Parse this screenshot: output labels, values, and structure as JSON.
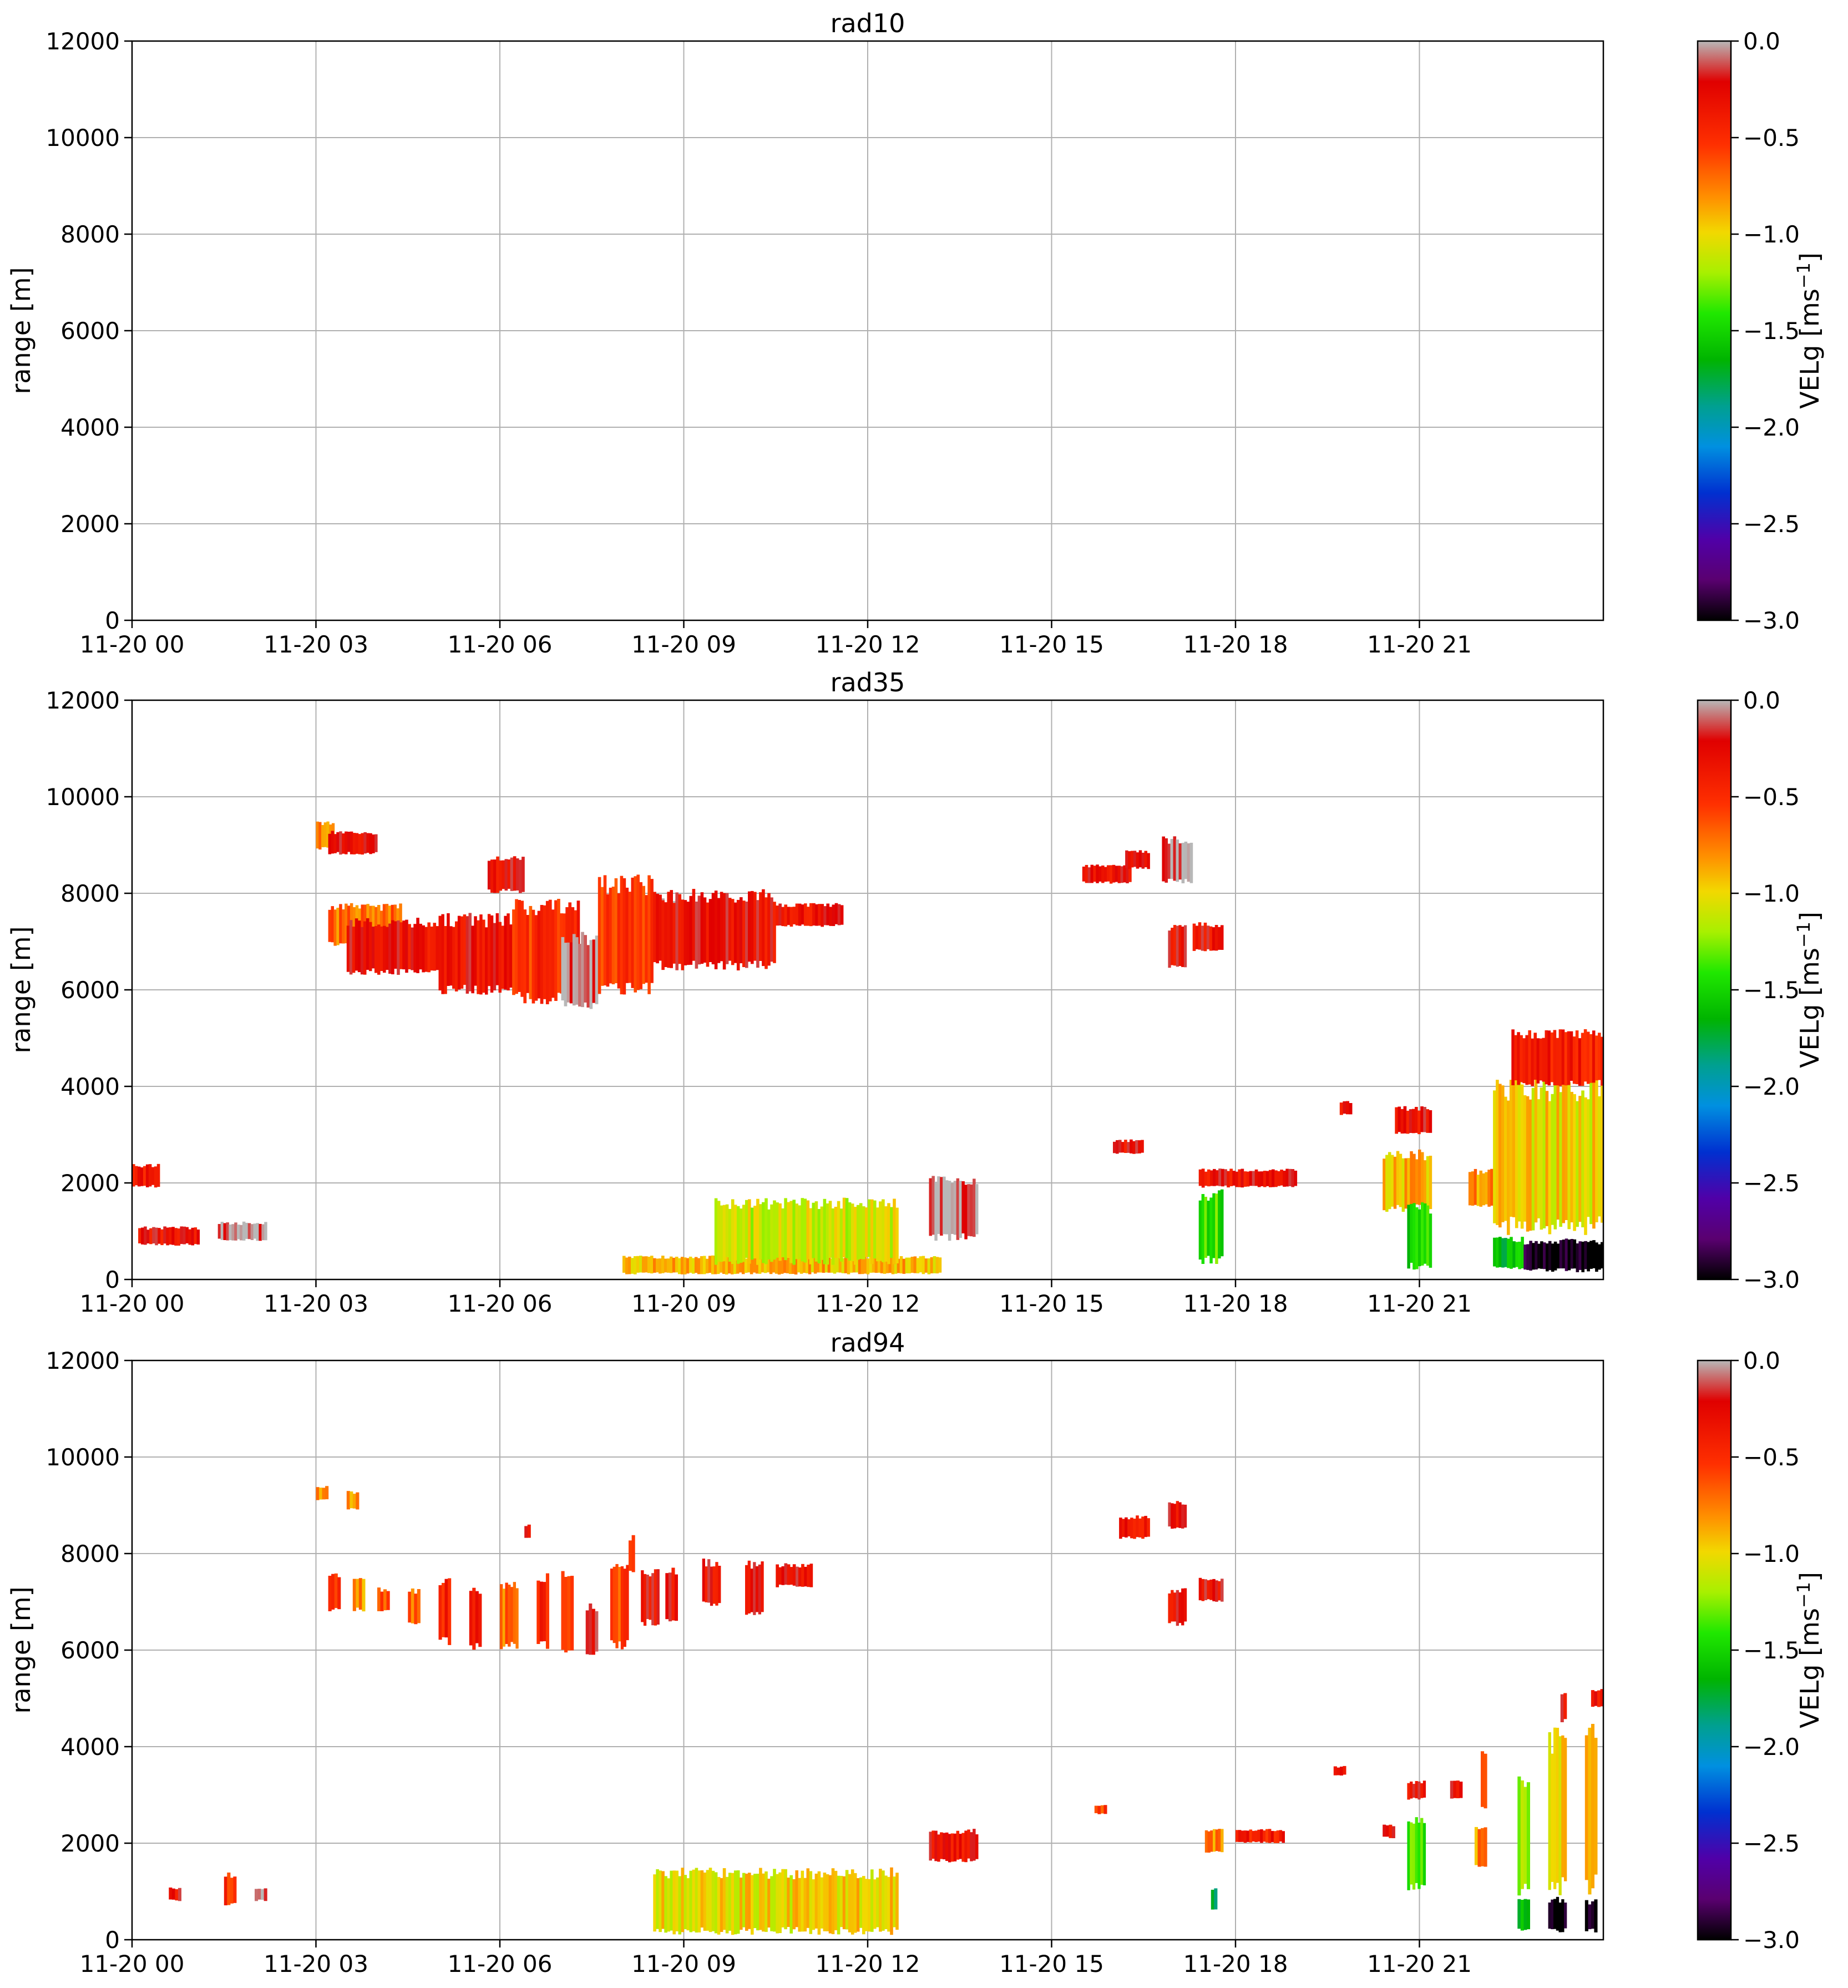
{
  "chart_data": [
    {
      "type": "heatmap",
      "title": "rad10",
      "ylabel": "range [m]",
      "xlabel": "",
      "ylim": [
        0,
        12000
      ],
      "yticks": [
        0,
        2000,
        4000,
        6000,
        8000,
        10000,
        12000
      ],
      "xlim_hours": [
        0,
        24
      ],
      "xticks_hours": [
        0,
        3,
        6,
        9,
        12,
        15,
        18,
        21
      ],
      "xtick_labels": [
        "11-20 00",
        "11-20 03",
        "11-20 06",
        "11-20 09",
        "11-20 12",
        "11-20 15",
        "11-20 18",
        "11-20 21"
      ],
      "grid": true,
      "colorbar": {
        "label": "VELg [ms$^{-1}$]",
        "label_main": "VELg [ms",
        "label_sup": "−1",
        "label_close": "]",
        "range": [
          -3.0,
          0.0
        ],
        "ticks": [
          "0.0",
          "−0.5",
          "−1.0",
          "−1.5",
          "−2.0",
          "−2.5",
          "−3.0"
        ]
      },
      "echo_regions": []
    },
    {
      "type": "heatmap",
      "title": "rad35",
      "ylabel": "range [m]",
      "xlabel": "",
      "ylim": [
        0,
        12000
      ],
      "yticks": [
        0,
        2000,
        4000,
        6000,
        8000,
        10000,
        12000
      ],
      "xlim_hours": [
        0,
        24
      ],
      "xticks_hours": [
        0,
        3,
        6,
        9,
        12,
        15,
        18,
        21
      ],
      "xtick_labels": [
        "11-20 00",
        "11-20 03",
        "11-20 06",
        "11-20 09",
        "11-20 12",
        "11-20 15",
        "11-20 18",
        "11-20 21"
      ],
      "grid": true,
      "colorbar": {
        "label": "VELg [ms$^{-1}$]",
        "label_main": "VELg [ms",
        "label_sup": "−1",
        "label_close": "]",
        "range": [
          -3.0,
          0.0
        ],
        "ticks": [
          "0.0",
          "−0.5",
          "−1.0",
          "−1.5",
          "−2.0",
          "−2.5",
          "−3.0"
        ]
      },
      "echo_regions": [
        {
          "t0": 0.0,
          "t1": 0.45,
          "r0": 1900,
          "r1": 2400,
          "vel": -0.4
        },
        {
          "t0": 0.1,
          "t1": 1.1,
          "r0": 700,
          "r1": 1100,
          "vel": -0.3
        },
        {
          "t0": 1.4,
          "t1": 2.2,
          "r0": 800,
          "r1": 1200,
          "vel": -0.05
        },
        {
          "t0": 3.0,
          "t1": 3.3,
          "r0": 8900,
          "r1": 9500,
          "vel": -0.8
        },
        {
          "t0": 3.2,
          "t1": 4.0,
          "r0": 8800,
          "r1": 9300,
          "vel": -0.3
        },
        {
          "t0": 3.2,
          "t1": 4.4,
          "r0": 6900,
          "r1": 7800,
          "vel": -0.7
        },
        {
          "t0": 3.5,
          "t1": 5.0,
          "r0": 6300,
          "r1": 7500,
          "vel": -0.3
        },
        {
          "t0": 5.0,
          "t1": 6.2,
          "r0": 5900,
          "r1": 7600,
          "vel": -0.3
        },
        {
          "t0": 5.8,
          "t1": 6.4,
          "r0": 8000,
          "r1": 8800,
          "vel": -0.3
        },
        {
          "t0": 6.2,
          "t1": 7.3,
          "r0": 5700,
          "r1": 7900,
          "vel": -0.5
        },
        {
          "t0": 7.0,
          "t1": 7.6,
          "r0": 5600,
          "r1": 7200,
          "vel": -0.05
        },
        {
          "t0": 7.6,
          "t1": 8.5,
          "r0": 5900,
          "r1": 8400,
          "vel": -0.5
        },
        {
          "t0": 8.5,
          "t1": 9.0,
          "r0": 7200,
          "r1": 7900,
          "vel": -0.05
        },
        {
          "t0": 8.5,
          "t1": 10.5,
          "r0": 6400,
          "r1": 8100,
          "vel": -0.3
        },
        {
          "t0": 10.5,
          "t1": 11.6,
          "r0": 7300,
          "r1": 7800,
          "vel": -0.3
        },
        {
          "t0": 8.0,
          "t1": 13.2,
          "r0": 100,
          "r1": 500,
          "vel": -0.9
        },
        {
          "t0": 9.5,
          "t1": 12.5,
          "r0": 300,
          "r1": 1700,
          "vel": -1.1
        },
        {
          "t0": 13.0,
          "t1": 13.8,
          "r0": 800,
          "r1": 2200,
          "vel": -0.05
        },
        {
          "t0": 15.5,
          "t1": 16.3,
          "r0": 8200,
          "r1": 8600,
          "vel": -0.3
        },
        {
          "t0": 16.2,
          "t1": 16.6,
          "r0": 8500,
          "r1": 8900,
          "vel": -0.3
        },
        {
          "t0": 16.8,
          "t1": 17.3,
          "r0": 8200,
          "r1": 9200,
          "vel": -0.05
        },
        {
          "t0": 16.9,
          "t1": 17.2,
          "r0": 6400,
          "r1": 7400,
          "vel": -0.3
        },
        {
          "t0": 17.3,
          "t1": 17.8,
          "r0": 6800,
          "r1": 7400,
          "vel": -0.3
        },
        {
          "t0": 16.0,
          "t1": 16.5,
          "r0": 2600,
          "r1": 2900,
          "vel": -0.3
        },
        {
          "t0": 17.4,
          "t1": 19.0,
          "r0": 1900,
          "r1": 2300,
          "vel": -0.3
        },
        {
          "t0": 17.4,
          "t1": 17.8,
          "r0": 300,
          "r1": 1900,
          "vel": -1.4
        },
        {
          "t0": 19.7,
          "t1": 19.9,
          "r0": 3400,
          "r1": 3700,
          "vel": -0.3
        },
        {
          "t0": 20.4,
          "t1": 21.2,
          "r0": 1400,
          "r1": 2700,
          "vel": -0.9
        },
        {
          "t0": 20.6,
          "t1": 21.2,
          "r0": 3000,
          "r1": 3600,
          "vel": -0.3
        },
        {
          "t0": 20.8,
          "t1": 21.2,
          "r0": 200,
          "r1": 1600,
          "vel": -1.5
        },
        {
          "t0": 21.8,
          "t1": 22.2,
          "r0": 1500,
          "r1": 2300,
          "vel": -0.8
        },
        {
          "t0": 22.2,
          "t1": 24.0,
          "r0": 900,
          "r1": 4300,
          "vel": -1.0
        },
        {
          "t0": 22.5,
          "t1": 24.0,
          "r0": 4000,
          "r1": 5200,
          "vel": -0.4
        },
        {
          "t0": 22.2,
          "t1": 22.7,
          "r0": 200,
          "r1": 900,
          "vel": -1.6
        },
        {
          "t0": 22.7,
          "t1": 24.0,
          "r0": 150,
          "r1": 850,
          "vel": -3.0
        }
      ]
    },
    {
      "type": "heatmap",
      "title": "rad94",
      "ylabel": "range [m]",
      "xlabel": "",
      "ylim": [
        0,
        12000
      ],
      "yticks": [
        0,
        2000,
        4000,
        6000,
        8000,
        10000,
        12000
      ],
      "xlim_hours": [
        0,
        24
      ],
      "xticks_hours": [
        0,
        3,
        6,
        9,
        12,
        15,
        18,
        21
      ],
      "xtick_labels": [
        "11-20 00",
        "11-20 03",
        "11-20 06",
        "11-20 09",
        "11-20 12",
        "11-20 15",
        "11-20 18",
        "11-20 21"
      ],
      "grid": true,
      "colorbar": {
        "label": "VELg [ms$^{-1}$]",
        "label_main": "VELg [ms",
        "label_sup": "−1",
        "label_close": "]",
        "range": [
          -3.0,
          0.0
        ],
        "ticks": [
          "0.0",
          "−0.5",
          "−1.0",
          "−1.5",
          "−2.0",
          "−2.5",
          "−3.0"
        ]
      },
      "echo_regions": [
        {
          "t0": 0.6,
          "t1": 0.8,
          "r0": 800,
          "r1": 1100,
          "vel": -0.3
        },
        {
          "t0": 1.5,
          "t1": 1.7,
          "r0": 700,
          "r1": 1400,
          "vel": -0.5
        },
        {
          "t0": 2.0,
          "t1": 2.2,
          "r0": 800,
          "r1": 1100,
          "vel": -0.05
        },
        {
          "t0": 3.0,
          "t1": 3.2,
          "r0": 9100,
          "r1": 9400,
          "vel": -0.8
        },
        {
          "t0": 3.5,
          "t1": 3.7,
          "r0": 8900,
          "r1": 9300,
          "vel": -0.8
        },
        {
          "t0": 3.2,
          "t1": 3.4,
          "r0": 6800,
          "r1": 7600,
          "vel": -0.6
        },
        {
          "t0": 3.6,
          "t1": 3.8,
          "r0": 6800,
          "r1": 7500,
          "vel": -0.8
        },
        {
          "t0": 4.0,
          "t1": 4.2,
          "r0": 6800,
          "r1": 7300,
          "vel": -0.6
        },
        {
          "t0": 4.5,
          "t1": 4.7,
          "r0": 6500,
          "r1": 7300,
          "vel": -0.7
        },
        {
          "t0": 5.0,
          "t1": 5.2,
          "r0": 6100,
          "r1": 7500,
          "vel": -0.4
        },
        {
          "t0": 5.5,
          "t1": 5.7,
          "r0": 6000,
          "r1": 7400,
          "vel": -0.3
        },
        {
          "t0": 6.0,
          "t1": 6.3,
          "r0": 6000,
          "r1": 7500,
          "vel": -0.7
        },
        {
          "t0": 6.4,
          "t1": 6.5,
          "r0": 8300,
          "r1": 8600,
          "vel": -0.3
        },
        {
          "t0": 6.6,
          "t1": 6.8,
          "r0": 6000,
          "r1": 7600,
          "vel": -0.4
        },
        {
          "t0": 7.0,
          "t1": 7.2,
          "r0": 5800,
          "r1": 7700,
          "vel": -0.6
        },
        {
          "t0": 7.4,
          "t1": 7.6,
          "r0": 5900,
          "r1": 7000,
          "vel": -0.2
        },
        {
          "t0": 7.8,
          "t1": 8.1,
          "r0": 6000,
          "r1": 7800,
          "vel": -0.6
        },
        {
          "t0": 8.1,
          "t1": 8.2,
          "r0": 7600,
          "r1": 8400,
          "vel": -0.5
        },
        {
          "t0": 8.3,
          "t1": 8.6,
          "r0": 6500,
          "r1": 7700,
          "vel": -0.3
        },
        {
          "t0": 8.7,
          "t1": 8.9,
          "r0": 6500,
          "r1": 7800,
          "vel": -0.3
        },
        {
          "t0": 9.3,
          "t1": 9.6,
          "r0": 6900,
          "r1": 7900,
          "vel": -0.3
        },
        {
          "t0": 10.0,
          "t1": 10.3,
          "r0": 6700,
          "r1": 7900,
          "vel": -0.3
        },
        {
          "t0": 10.5,
          "t1": 11.1,
          "r0": 7300,
          "r1": 7800,
          "vel": -0.3
        },
        {
          "t0": 8.5,
          "t1": 12.5,
          "r0": 100,
          "r1": 1500,
          "vel": -1.0
        },
        {
          "t0": 13.0,
          "t1": 13.8,
          "r0": 1600,
          "r1": 2300,
          "vel": -0.3
        },
        {
          "t0": 15.7,
          "t1": 15.9,
          "r0": 2600,
          "r1": 2800,
          "vel": -0.6
        },
        {
          "t0": 16.1,
          "t1": 16.6,
          "r0": 8300,
          "r1": 8800,
          "vel": -0.3
        },
        {
          "t0": 16.9,
          "t1": 17.2,
          "r0": 8500,
          "r1": 9100,
          "vel": -0.3
        },
        {
          "t0": 16.9,
          "t1": 17.2,
          "r0": 6500,
          "r1": 7300,
          "vel": -0.3
        },
        {
          "t0": 17.4,
          "t1": 17.8,
          "r0": 7000,
          "r1": 7500,
          "vel": -0.3
        },
        {
          "t0": 17.5,
          "t1": 17.8,
          "r0": 1800,
          "r1": 2300,
          "vel": -0.8
        },
        {
          "t0": 17.6,
          "t1": 17.7,
          "r0": 600,
          "r1": 1100,
          "vel": -1.7
        },
        {
          "t0": 18.0,
          "t1": 18.8,
          "r0": 2000,
          "r1": 2300,
          "vel": -0.4
        },
        {
          "t0": 19.6,
          "t1": 19.8,
          "r0": 3400,
          "r1": 3600,
          "vel": -0.3
        },
        {
          "t0": 20.4,
          "t1": 20.6,
          "r0": 2100,
          "r1": 2400,
          "vel": -0.3
        },
        {
          "t0": 20.8,
          "t1": 21.1,
          "r0": 2900,
          "r1": 3300,
          "vel": -0.3
        },
        {
          "t0": 20.8,
          "t1": 21.1,
          "r0": 1000,
          "r1": 2600,
          "vel": -1.4
        },
        {
          "t0": 21.5,
          "t1": 21.7,
          "r0": 2900,
          "r1": 3300,
          "vel": -0.3
        },
        {
          "t0": 21.9,
          "t1": 22.1,
          "r0": 1500,
          "r1": 2400,
          "vel": -0.8
        },
        {
          "t0": 22.0,
          "t1": 22.1,
          "r0": 2700,
          "r1": 4100,
          "vel": -0.7
        },
        {
          "t0": 22.6,
          "t1": 22.8,
          "r0": 900,
          "r1": 3600,
          "vel": -1.2
        },
        {
          "t0": 22.6,
          "t1": 22.8,
          "r0": 150,
          "r1": 900,
          "vel": -1.6
        },
        {
          "t0": 23.1,
          "t1": 23.4,
          "r0": 900,
          "r1": 4400,
          "vel": -1.0
        },
        {
          "t0": 23.1,
          "t1": 23.4,
          "r0": 150,
          "r1": 900,
          "vel": -3.0
        },
        {
          "t0": 23.3,
          "t1": 23.4,
          "r0": 4500,
          "r1": 5200,
          "vel": -0.3
        },
        {
          "t0": 23.7,
          "t1": 23.9,
          "r0": 900,
          "r1": 4800,
          "vel": -1.0
        },
        {
          "t0": 23.7,
          "t1": 23.9,
          "r0": 150,
          "r1": 850,
          "vel": -3.0
        },
        {
          "t0": 23.8,
          "t1": 24.0,
          "r0": 4800,
          "r1": 5200,
          "vel": -0.3
        }
      ]
    }
  ]
}
